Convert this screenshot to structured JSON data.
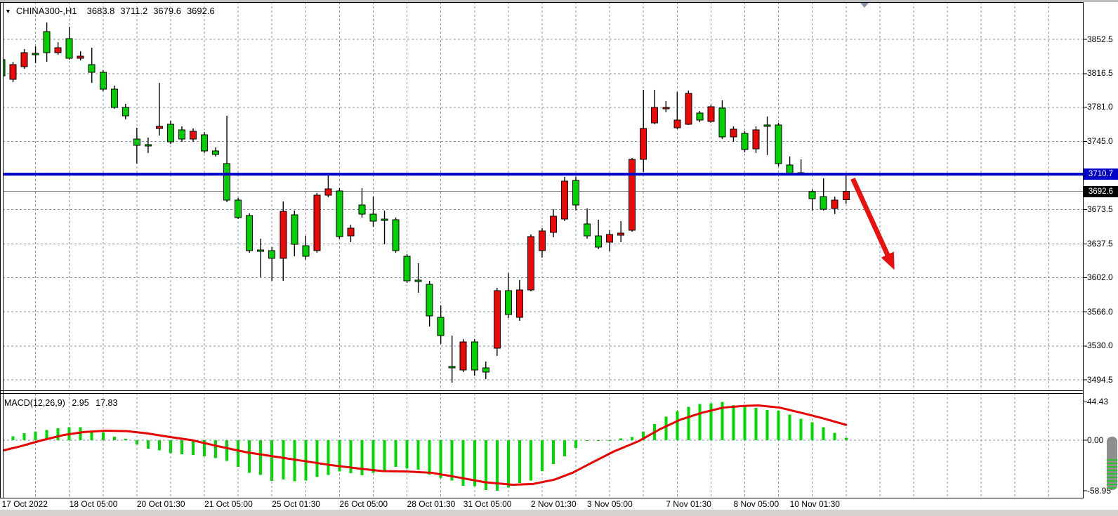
{
  "chart_header": {
    "collapse_icon": "▼",
    "symbol": "CHINA300-,H1",
    "open": "3683.8",
    "high": "3711.2",
    "low": "3679.6",
    "close": "3692.6"
  },
  "macd_header": {
    "name": "MACD(12,26,9)",
    "main": "2.95",
    "signal": "17.83"
  },
  "price_tags": {
    "hline": "3710.7",
    "last": "3692.6"
  },
  "colors": {
    "bull_candle": "#ea0a0a",
    "bear_candle": "#00d000",
    "candle_border": "#000000",
    "hline": "#0000c8",
    "last_price_line": "#808080",
    "grid": "#8696a6",
    "macd_histogram": "#00d900",
    "macd_signal": "#e60000",
    "arrow": "#ea1010",
    "hline_tag_bg": "#0000c8",
    "last_tag_bg": "#000000",
    "border": "#000000"
  },
  "chart_data": {
    "type": "candlestick",
    "symbol": "CHINA300-",
    "timeframe": "H1",
    "ohlc_display": {
      "open": 3683.8,
      "high": 3711.2,
      "low": 3679.6,
      "close": 3692.6
    },
    "price_axis": {
      "tick_labels": [
        "3852.5",
        "3816.5",
        "3781.0",
        "3745.0",
        "3673.5",
        "3637.5",
        "3602.0",
        "3566.0",
        "3530.0",
        "3494.5"
      ],
      "gridline_prices": [
        3852.5,
        3816.5,
        3781.0,
        3745.0,
        3709.5,
        3673.5,
        3637.5,
        3602.0,
        3566.0,
        3530.0,
        3494.5
      ],
      "hline_price": 3710.7,
      "last_price": 3692.6,
      "visible_price_range": [
        3483.5,
        3890.9
      ]
    },
    "time_axis": {
      "gridline_every_candles": 3,
      "labels": [
        {
          "candle": 1,
          "text": "17 Oct 2022"
        },
        {
          "candle": 7,
          "text": "18 Oct 05:00"
        },
        {
          "candle": 13,
          "text": "20 Oct 01:30"
        },
        {
          "candle": 19,
          "text": "21 Oct 05:00"
        },
        {
          "candle": 25,
          "text": "25 Oct 01:30"
        },
        {
          "candle": 31,
          "text": "26 Oct 05:00"
        },
        {
          "candle": 37,
          "text": "28 Oct 01:30"
        },
        {
          "candle": 42,
          "text": "31 Oct 05:00"
        },
        {
          "candle": 48,
          "text": "2 Nov 01:30"
        },
        {
          "candle": 53,
          "text": "3 Nov 05:00"
        },
        {
          "candle": 60,
          "text": "7 Nov 01:30"
        },
        {
          "candle": 66,
          "text": "8 Nov 05:00"
        },
        {
          "candle": 71,
          "text": "10 Nov 01:30"
        }
      ]
    },
    "candles": [
      [
        3831.1,
        3834.8,
        3810.4,
        3814.1
      ],
      [
        3810.4,
        3828.9,
        3807.5,
        3825.9
      ],
      [
        3823.7,
        3842.2,
        3821.5,
        3838.5
      ],
      [
        3837.8,
        3845.1,
        3827.4,
        3836.3
      ],
      [
        3860.6,
        3870.2,
        3828.9,
        3838.5
      ],
      [
        3838.5,
        3849.5,
        3836.3,
        3843.6
      ],
      [
        3853.2,
        3865.8,
        3831.1,
        3832.6
      ],
      [
        3832.6,
        3840.0,
        3830.4,
        3834.8
      ],
      [
        3825.9,
        3843.6,
        3806.7,
        3817.8
      ],
      [
        3817.8,
        3820.0,
        3797.9,
        3800.1
      ],
      [
        3800.1,
        3803.8,
        3779.4,
        3780.9
      ],
      [
        3780.9,
        3784.6,
        3768.4,
        3772.1
      ],
      [
        3747.7,
        3759.5,
        3721.9,
        3741.1
      ],
      [
        3741.8,
        3749.2,
        3733.0,
        3740.3
      ],
      [
        3758.8,
        3806.7,
        3751.4,
        3761.0
      ],
      [
        3763.2,
        3766.9,
        3742.5,
        3744.7
      ],
      [
        3757.3,
        3761.0,
        3744.7,
        3747.7
      ],
      [
        3747.7,
        3758.8,
        3744.7,
        3755.8
      ],
      [
        3752.1,
        3755.1,
        3733.0,
        3735.2
      ],
      [
        3735.2,
        3738.9,
        3729.3,
        3731.5
      ],
      [
        3721.9,
        3772.1,
        3681.3,
        3683.5
      ],
      [
        3683.5,
        3685.7,
        3663.6,
        3665.1
      ],
      [
        3667.3,
        3669.5,
        3628.2,
        3630.4
      ],
      [
        3631.1,
        3642.9,
        3602.3,
        3629.6
      ],
      [
        3630.4,
        3634.1,
        3598.6,
        3622.3
      ],
      [
        3622.3,
        3682.0,
        3598.6,
        3671.7
      ],
      [
        3668.0,
        3672.5,
        3624.5,
        3637.0
      ],
      [
        3635.5,
        3645.9,
        3620.8,
        3624.5
      ],
      [
        3630.4,
        3690.9,
        3628.2,
        3688.7
      ],
      [
        3688.7,
        3710.8,
        3686.5,
        3695.3
      ],
      [
        3693.1,
        3696.0,
        3642.9,
        3645.1
      ],
      [
        3645.9,
        3657.7,
        3639.2,
        3654.0
      ],
      [
        3678.4,
        3696.0,
        3665.1,
        3668.8
      ],
      [
        3668.8,
        3687.2,
        3655.5,
        3661.4
      ],
      [
        3663.6,
        3672.5,
        3637.0,
        3662.1
      ],
      [
        3662.8,
        3665.1,
        3628.2,
        3630.4
      ],
      [
        3624.5,
        3626.7,
        3596.4,
        3598.6
      ],
      [
        3599.4,
        3617.1,
        3586.1,
        3597.9
      ],
      [
        3594.9,
        3598.6,
        3550.6,
        3561.7
      ],
      [
        3560.2,
        3572.8,
        3532.2,
        3541.0
      ],
      [
        3508.6,
        3541.0,
        3491.5,
        3507.1
      ],
      [
        3504.9,
        3537.3,
        3502.6,
        3534.4
      ],
      [
        3534.4,
        3537.3,
        3498.9,
        3504.9
      ],
      [
        3507.1,
        3513.7,
        3495.2,
        3502.6
      ],
      [
        3527.7,
        3591.2,
        3519.6,
        3588.3
      ],
      [
        3588.3,
        3606.8,
        3559.5,
        3563.2
      ],
      [
        3560.2,
        3599.4,
        3556.5,
        3589.0
      ],
      [
        3589.0,
        3647.3,
        3587.5,
        3645.1
      ],
      [
        3630.4,
        3654.0,
        3623.0,
        3651.0
      ],
      [
        3649.6,
        3673.9,
        3644.4,
        3666.5
      ],
      [
        3663.6,
        3707.9,
        3661.4,
        3703.4
      ],
      [
        3704.2,
        3707.9,
        3672.5,
        3678.4
      ],
      [
        3658.4,
        3674.7,
        3642.9,
        3645.9
      ],
      [
        3645.9,
        3662.8,
        3631.8,
        3634.1
      ],
      [
        3639.2,
        3651.8,
        3629.6,
        3647.3
      ],
      [
        3646.6,
        3661.4,
        3639.2,
        3648.8
      ],
      [
        3651.8,
        3727.8,
        3650.3,
        3726.3
      ],
      [
        3726.3,
        3799.4,
        3713.0,
        3758.8
      ],
      [
        3764.7,
        3799.4,
        3763.2,
        3780.9
      ],
      [
        3779.4,
        3787.6,
        3775.8,
        3780.9
      ],
      [
        3759.5,
        3797.2,
        3758.1,
        3767.7
      ],
      [
        3763.2,
        3798.7,
        3762.5,
        3795.7
      ],
      [
        3775.0,
        3777.2,
        3765.4,
        3767.7
      ],
      [
        3766.2,
        3783.9,
        3764.7,
        3781.7
      ],
      [
        3780.2,
        3788.3,
        3747.7,
        3749.9
      ],
      [
        3749.9,
        3761.0,
        3744.7,
        3758.1
      ],
      [
        3753.6,
        3755.8,
        3733.7,
        3736.6
      ],
      [
        3737.4,
        3761.0,
        3733.0,
        3757.3
      ],
      [
        3762.5,
        3771.4,
        3730.8,
        3761.0
      ],
      [
        3762.5,
        3764.7,
        3718.9,
        3721.9
      ],
      [
        3720.4,
        3729.3,
        3710.8,
        3711.5
      ],
      [
        3712.3,
        3726.3,
        3710.1,
        3710.8
      ],
      [
        3692.4,
        3694.6,
        3672.5,
        3685.0
      ],
      [
        3687.2,
        3706.4,
        3672.5,
        3673.9
      ],
      [
        3674.7,
        3687.2,
        3668.8,
        3683.5
      ],
      [
        3683.8,
        3711.2,
        3679.6,
        3692.6
      ]
    ],
    "macd": {
      "name": "MACD",
      "params": [
        12,
        26,
        9
      ],
      "current_main": 2.95,
      "current_signal": 17.83,
      "scale_labels": [
        "44.43",
        "0.00",
        "-58.95"
      ],
      "scale_values": [
        44.43,
        0.0,
        -58.95
      ],
      "histogram": [
        3.3,
        4.7,
        8.2,
        10,
        12,
        14,
        15,
        15,
        11,
        9,
        4,
        1.5,
        -5,
        -10,
        -12,
        -15,
        -16.5,
        -17,
        -19,
        -21,
        -24,
        -31,
        -38,
        -40.6,
        -47.5,
        -46,
        -48,
        -47,
        -43,
        -40.5,
        -36.5,
        -38.4,
        -41,
        -38,
        -35,
        -31,
        -33,
        -34.5,
        -40,
        -44,
        -47,
        -53,
        -53.5,
        -58,
        -58.95,
        -55.4,
        -50,
        -47,
        -36,
        -28,
        -19,
        -9,
        -0.5,
        -0.3,
        -0.2,
        2,
        3.5,
        10,
        19,
        27.5,
        34,
        39,
        42,
        43,
        44.43,
        41,
        40.5,
        37.5,
        35,
        34.5,
        30,
        25,
        21,
        15,
        8.5,
        2.95
      ],
      "signal": [
        [
          0.5,
          -14
        ],
        [
          2.7,
          -7
        ],
        [
          4.6,
          0
        ],
        [
          6.5,
          6
        ],
        [
          8.3,
          9.5
        ],
        [
          10.2,
          11
        ],
        [
          12.1,
          10.5
        ],
        [
          13.9,
          8
        ],
        [
          15.8,
          4
        ],
        [
          17.9,
          0
        ],
        [
          20.2,
          -7
        ],
        [
          22.7,
          -14
        ],
        [
          25.2,
          -19
        ],
        [
          27.7,
          -24
        ],
        [
          30.2,
          -29
        ],
        [
          32.7,
          -33
        ],
        [
          34.8,
          -36
        ],
        [
          37,
          -36.5
        ],
        [
          39.2,
          -38
        ],
        [
          41.4,
          -43
        ],
        [
          43.9,
          -49
        ],
        [
          46.4,
          -52
        ],
        [
          48.2,
          -51
        ],
        [
          50.1,
          -46
        ],
        [
          51.7,
          -38
        ],
        [
          53.6,
          -25
        ],
        [
          55.4,
          -13
        ],
        [
          57.6,
          -1
        ],
        [
          59.5,
          13
        ],
        [
          61.3,
          24
        ],
        [
          63.2,
          32
        ],
        [
          65.1,
          38
        ],
        [
          67,
          40
        ],
        [
          68.2,
          40.5
        ],
        [
          70.1,
          38
        ],
        [
          72,
          32
        ],
        [
          73.8,
          26
        ],
        [
          76,
          17.83
        ]
      ]
    },
    "trend_arrow": {
      "direction": "down-right",
      "from": {
        "candle": 76.6,
        "price": 3706
      },
      "to": {
        "candle": 80.3,
        "price": 3610
      }
    }
  }
}
